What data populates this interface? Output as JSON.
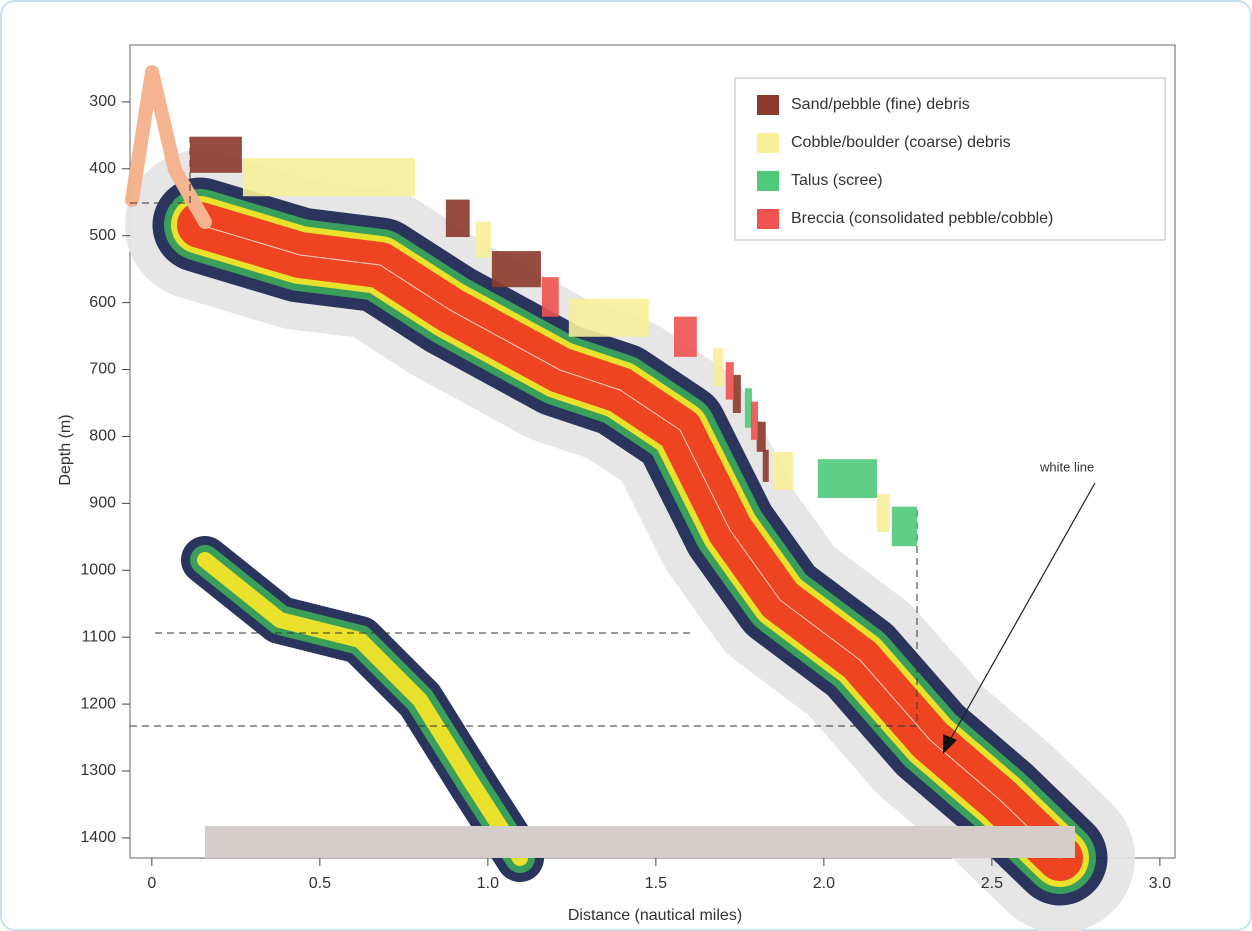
{
  "chart_data": {
    "type": "rect",
    "x_label": "Distance (nautical miles)",
    "y_label": "Depth (m)",
    "xlim": [
      -0.065,
      3.045
    ],
    "ylim": [
      1430,
      215
    ],
    "xticks": [
      0,
      0.5,
      {
        "value": 1,
        "label": "1.0"
      },
      1.5,
      {
        "value": 2,
        "label": "2.0"
      },
      2.5,
      {
        "value": 3,
        "label": "3.0"
      }
    ],
    "yticks": [
      300,
      400,
      500,
      600,
      700,
      800,
      900,
      1000,
      1100,
      1200,
      1300,
      1400
    ],
    "legend": "top-right",
    "annotation": "white line",
    "series": [
      {
        "name": "Sand/pebble (fine) debris",
        "color": "#8b3a2b",
        "x": [
          [
            0.113,
            0.268
          ],
          [
            0.875,
            0.946
          ],
          [
            1.012,
            1.158
          ],
          [
            1.729,
            1.753
          ],
          [
            1.8,
            1.827
          ],
          [
            1.818,
            1.836
          ]
        ],
        "values": [
          [
            352,
            406
          ],
          [
            446,
            502
          ],
          [
            523,
            577
          ],
          [
            708,
            765
          ],
          [
            778,
            823
          ],
          [
            820,
            868
          ]
        ]
      },
      {
        "name": "Cobble/boulder (coarse) debris",
        "color": "#f7ef9a",
        "x": [
          [
            0.271,
            0.783
          ],
          [
            0.964,
            1.009
          ],
          [
            1.241,
            1.479
          ],
          [
            1.67,
            1.7
          ],
          [
            1.848,
            1.908
          ],
          [
            2.158,
            2.196
          ]
        ],
        "values": [
          [
            384,
            441
          ],
          [
            479,
            533
          ],
          [
            594,
            651
          ],
          [
            668,
            725
          ],
          [
            823,
            880
          ],
          [
            886,
            943
          ]
        ]
      },
      {
        "name": "Talus (scree)",
        "color": "#4fc97a",
        "x": [
          [
            1.765,
            1.786
          ],
          [
            1.982,
            2.158
          ],
          [
            2.202,
            2.277
          ]
        ],
        "values": [
          [
            728,
            787
          ],
          [
            834,
            892
          ],
          [
            905,
            964
          ]
        ]
      },
      {
        "name": "Breccia (consolidated pebble/cobble)",
        "color": "#f0524f",
        "x": [
          [
            1.161,
            1.211
          ],
          [
            1.554,
            1.622
          ],
          [
            1.708,
            1.732
          ],
          [
            1.783,
            1.804
          ]
        ],
        "values": [
          [
            562,
            621
          ],
          [
            621,
            681
          ],
          [
            689,
            745
          ],
          [
            748,
            805
          ]
        ]
      }
    ]
  }
}
